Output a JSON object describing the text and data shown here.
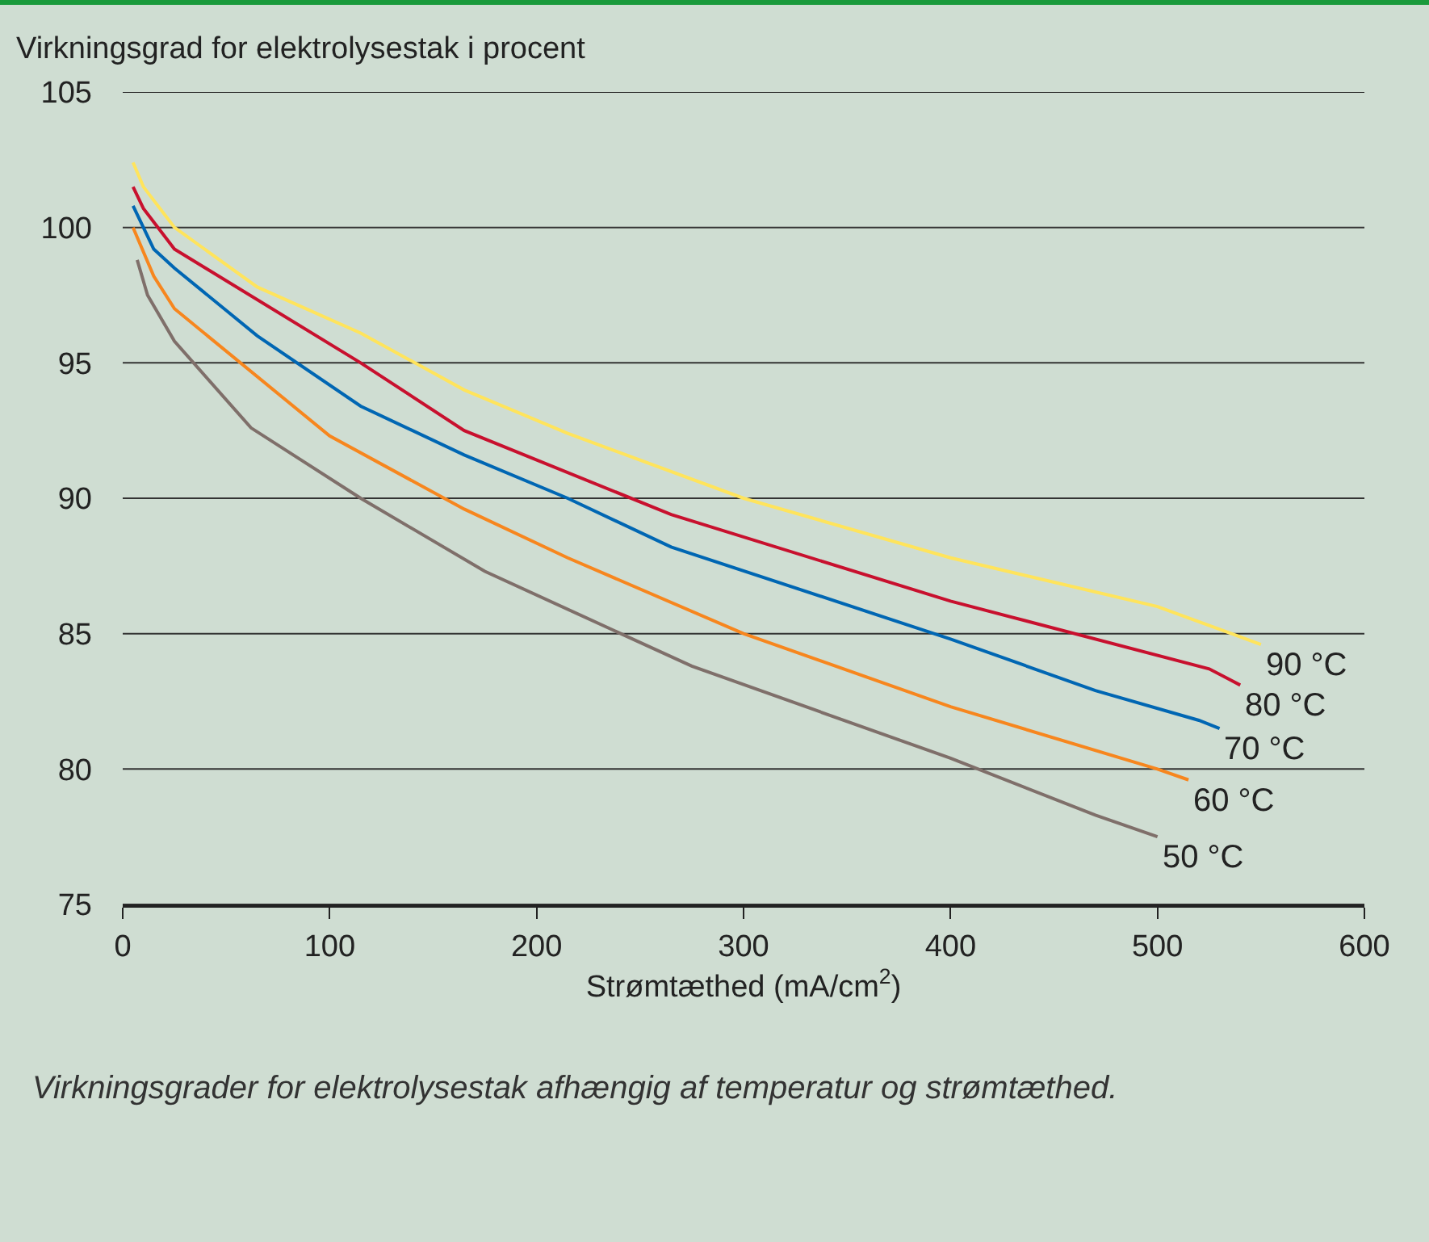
{
  "chart_data": {
    "type": "line",
    "ylabel": "Virkningsgrad for elektrolysestak i procent",
    "xlabel": "Strømtæthed (mA/cm$^{2}$)",
    "annotations": [
      "Virkningsgrader for elektrolysestak afhængig af temperatur og strømtæthed."
    ],
    "series": [
      {
        "name": "90 °C",
        "color": "#ffe45c",
        "x": [
          5,
          10,
          25,
          65,
          115,
          165,
          215,
          300,
          400,
          500,
          550
        ],
        "values": [
          102.4,
          101.5,
          100,
          97.8,
          96.1,
          94,
          92.4,
          90,
          87.8,
          86,
          84.6
        ]
      },
      {
        "name": "80 °C",
        "color": "#c8102e",
        "x": [
          5,
          10,
          25,
          115,
          165,
          265,
          400,
          525,
          540
        ],
        "values": [
          101.5,
          100.7,
          99.2,
          95,
          92.5,
          89.4,
          86.2,
          83.7,
          83.1
        ]
      },
      {
        "name": "70 °C",
        "color": "#0066b3",
        "x": [
          5,
          15,
          25,
          65,
          115,
          165,
          215,
          265,
          400,
          470,
          520,
          530
        ],
        "values": [
          100.8,
          99.2,
          98.5,
          96,
          93.4,
          91.6,
          90,
          88.2,
          84.8,
          82.9,
          81.8,
          81.5
        ]
      },
      {
        "name": "60 °C",
        "color": "#f7861e",
        "x": [
          5,
          15,
          25,
          100,
          165,
          215,
          300,
          400,
          500,
          515
        ],
        "values": [
          100,
          98.2,
          97,
          92.3,
          89.6,
          87.8,
          85,
          82.3,
          80,
          79.6
        ]
      },
      {
        "name": "50 °C",
        "color": "#7f6f6a",
        "x": [
          7,
          12,
          25,
          62,
          115,
          175,
          275,
          400,
          470,
          500
        ],
        "values": [
          98.8,
          97.5,
          95.8,
          92.6,
          90,
          87.3,
          83.8,
          80.4,
          78.3,
          77.5
        ]
      }
    ],
    "xlim": [
      0,
      600
    ],
    "xticks": [
      0,
      100,
      200,
      300,
      400,
      500,
      600
    ],
    "ylim": [
      75,
      105
    ],
    "yticks": [
      75,
      80,
      85,
      90,
      95,
      100,
      105
    ],
    "grid": "y",
    "marker": "none",
    "line_style": "solid"
  }
}
